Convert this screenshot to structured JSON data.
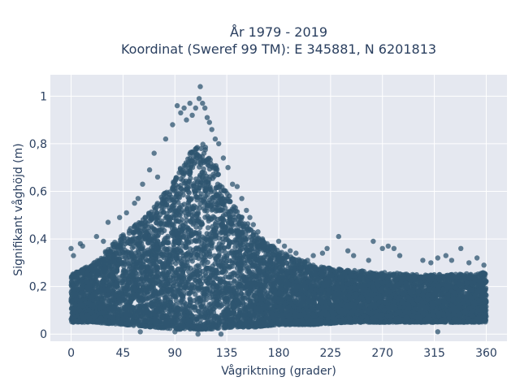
{
  "chart_data": {
    "type": "scatter",
    "title_line1": "År 1979 - 2019",
    "title_line2": "Koordinat (Sweref 99 TM): E 345881, N 6201813",
    "xlabel": "Vågriktning (grader)",
    "ylabel": "Signifikant våghöjd (m)",
    "xlim": [
      -18,
      378
    ],
    "ylim": [
      -0.03,
      1.09
    ],
    "x_ticks": [
      0,
      45,
      90,
      135,
      180,
      225,
      270,
      315,
      360
    ],
    "x_tick_labels": [
      "0",
      "45",
      "90",
      "135",
      "180",
      "225",
      "270",
      "315",
      "360"
    ],
    "y_ticks": [
      0,
      0.2,
      0.4,
      0.6,
      0.8,
      1
    ],
    "y_tick_labels": [
      "0",
      "0,2",
      "0,4",
      "0,6",
      "0,8",
      "1"
    ],
    "grid": true,
    "series": [
      {
        "color": "#2f5570",
        "envelope_x": [
          0,
          20,
          45,
          70,
          90,
          105,
          115,
          125,
          140,
          160,
          180,
          210,
          240,
          270,
          300,
          330,
          360
        ],
        "envelope_upper": [
          0.25,
          0.3,
          0.42,
          0.52,
          0.66,
          0.78,
          0.8,
          0.72,
          0.55,
          0.42,
          0.35,
          0.29,
          0.27,
          0.26,
          0.25,
          0.25,
          0.26
        ],
        "envelope_lower": [
          0.05,
          0.05,
          0.04,
          0.03,
          0.02,
          0.02,
          0.02,
          0.02,
          0.03,
          0.03,
          0.04,
          0.04,
          0.05,
          0.05,
          0.05,
          0.05,
          0.05
        ],
        "outlier_points": [
          [
            0,
            0.36
          ],
          [
            2,
            0.33
          ],
          [
            8,
            0.38
          ],
          [
            10,
            0.37
          ],
          [
            22,
            0.41
          ],
          [
            28,
            0.39
          ],
          [
            32,
            0.47
          ],
          [
            42,
            0.49
          ],
          [
            48,
            0.51
          ],
          [
            55,
            0.55
          ],
          [
            58,
            0.57
          ],
          [
            62,
            0.63
          ],
          [
            68,
            0.69
          ],
          [
            72,
            0.76
          ],
          [
            75,
            0.66
          ],
          [
            82,
            0.82
          ],
          [
            88,
            0.88
          ],
          [
            92,
            0.96
          ],
          [
            95,
            0.93
          ],
          [
            98,
            0.95
          ],
          [
            100,
            0.9
          ],
          [
            103,
            0.97
          ],
          [
            105,
            0.92
          ],
          [
            108,
            0.95
          ],
          [
            111,
            0.99
          ],
          [
            112,
            1.04
          ],
          [
            114,
            0.97
          ],
          [
            116,
            0.95
          ],
          [
            118,
            0.91
          ],
          [
            120,
            0.89
          ],
          [
            122,
            0.86
          ],
          [
            125,
            0.82
          ],
          [
            128,
            0.8
          ],
          [
            132,
            0.74
          ],
          [
            136,
            0.7
          ],
          [
            140,
            0.63
          ],
          [
            144,
            0.62
          ],
          [
            148,
            0.57
          ],
          [
            152,
            0.52
          ],
          [
            155,
            0.49
          ],
          [
            158,
            0.46
          ],
          [
            162,
            0.43
          ],
          [
            166,
            0.4
          ],
          [
            170,
            0.38
          ],
          [
            175,
            0.37
          ],
          [
            180,
            0.39
          ],
          [
            185,
            0.37
          ],
          [
            190,
            0.35
          ],
          [
            195,
            0.34
          ],
          [
            205,
            0.31
          ],
          [
            210,
            0.33
          ],
          [
            218,
            0.34
          ],
          [
            222,
            0.36
          ],
          [
            232,
            0.41
          ],
          [
            240,
            0.35
          ],
          [
            245,
            0.33
          ],
          [
            258,
            0.31
          ],
          [
            262,
            0.39
          ],
          [
            270,
            0.36
          ],
          [
            275,
            0.37
          ],
          [
            280,
            0.36
          ],
          [
            285,
            0.33
          ],
          [
            305,
            0.31
          ],
          [
            312,
            0.3
          ],
          [
            318,
            0.32
          ],
          [
            325,
            0.33
          ],
          [
            330,
            0.31
          ],
          [
            338,
            0.36
          ],
          [
            345,
            0.3
          ],
          [
            352,
            0.32
          ],
          [
            358,
            0.29
          ],
          [
            90,
            0.01
          ],
          [
            110,
            0.0
          ],
          [
            130,
            0.0
          ],
          [
            60,
            0.01
          ],
          [
            318,
            0.01
          ]
        ]
      }
    ]
  }
}
